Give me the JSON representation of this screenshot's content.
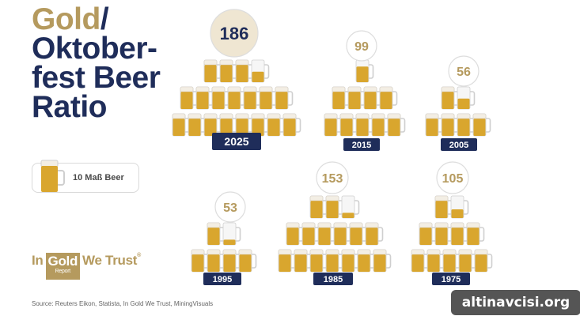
{
  "title": {
    "gold_word": "Gold",
    "slash": "/",
    "line2": "Oktober-",
    "line3": "fest Beer",
    "line4": "Ratio"
  },
  "legend": {
    "label": "10 Maß Beer"
  },
  "brand": {
    "in": "In",
    "gold": "Gold",
    "report": "Report",
    "we_trust": "We Trust",
    "reg": "®"
  },
  "source": "Source: Reuters Eikon, Statista, In Gold We Trust, MiningVisuals",
  "watermark": "altinavcisi.org",
  "colors": {
    "navy": "#1f2d5a",
    "gold": "#b59a5e",
    "beer": "#d9a62e",
    "foam": "#f3eee4",
    "ratio_bubble": "#efe6d2"
  },
  "chart_data": {
    "type": "pictogram",
    "unit": "10 Maß Beer per mug icon",
    "categories": [
      "2025",
      "2015",
      "2005",
      "1995",
      "1985",
      "1975"
    ],
    "values": [
      186,
      99,
      56,
      53,
      153,
      105
    ]
  }
}
